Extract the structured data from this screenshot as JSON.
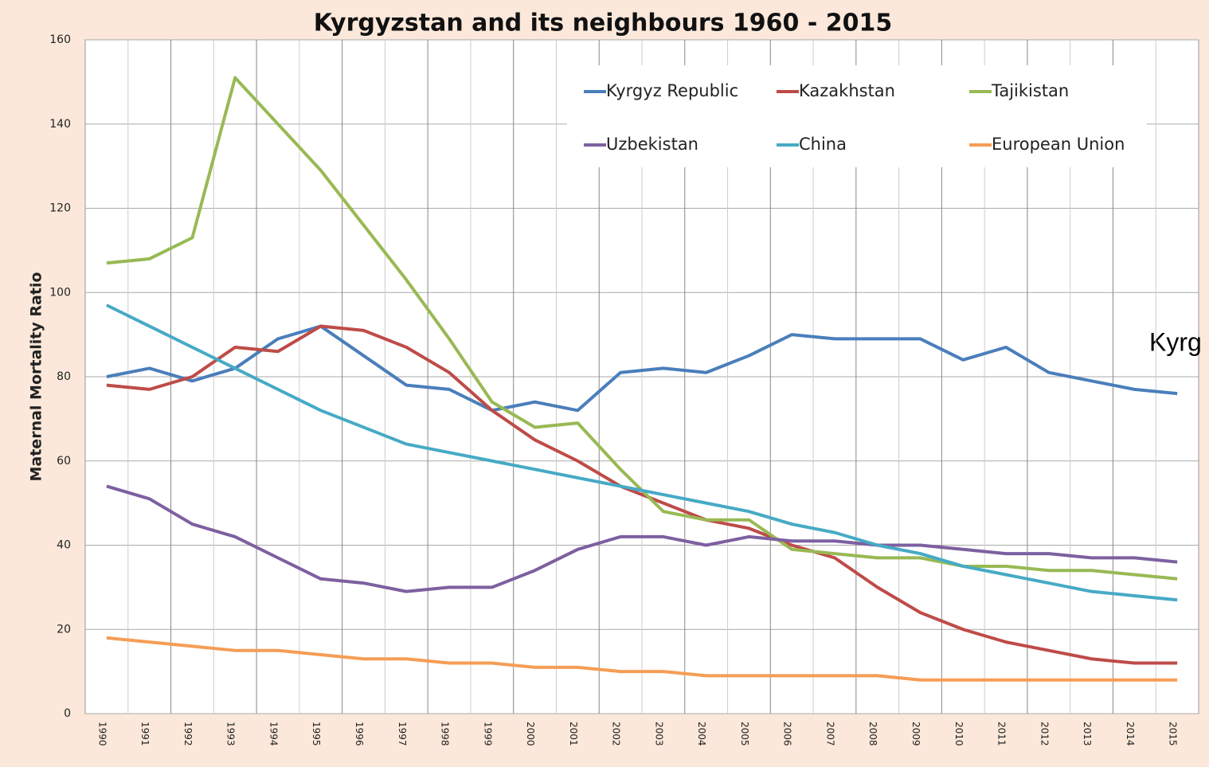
{
  "chart_data": {
    "type": "line",
    "title": "Kyrgyzstan and its neighbours 1960 - 2015",
    "y_label": "Maternal Mortality Ratio",
    "annotation": "Kyrg",
    "categories": [
      "1990",
      "1991",
      "1992",
      "1993",
      "1994",
      "1995",
      "1996",
      "1997",
      "1998",
      "1999",
      "2000",
      "2001",
      "2002",
      "2003",
      "2004",
      "2005",
      "2006",
      "2007",
      "2008",
      "2009",
      "2010",
      "2011",
      "2012",
      "2013",
      "2014",
      "2015"
    ],
    "series": [
      {
        "name": "Kyrgyz Republic",
        "color": "#4a7ebb",
        "values": [
          80,
          82,
          79,
          82,
          89,
          92,
          85,
          78,
          77,
          72,
          74,
          72,
          81,
          82,
          81,
          85,
          90,
          89,
          89,
          89,
          84,
          87,
          81,
          79,
          77,
          76
        ]
      },
      {
        "name": "Kazakhstan",
        "color": "#be4b48",
        "values": [
          78,
          77,
          80,
          87,
          86,
          92,
          91,
          87,
          81,
          72,
          65,
          60,
          54,
          50,
          46,
          44,
          40,
          37,
          30,
          24,
          20,
          17,
          15,
          13,
          12,
          12
        ]
      },
      {
        "name": "Tajikistan",
        "color": "#98b954",
        "values": [
          107,
          108,
          113,
          151,
          140,
          129,
          116,
          103,
          89,
          74,
          68,
          69,
          58,
          48,
          46,
          46,
          39,
          38,
          37,
          37,
          35,
          35,
          34,
          34,
          33,
          32
        ]
      },
      {
        "name": "Uzbekistan",
        "color": "#7d60a0",
        "values": [
          54,
          51,
          45,
          42,
          37,
          32,
          31,
          29,
          30,
          30,
          34,
          39,
          42,
          42,
          40,
          42,
          41,
          41,
          40,
          40,
          39,
          38,
          38,
          37,
          37,
          36
        ]
      },
      {
        "name": "China",
        "color": "#46aac5",
        "values": [
          97,
          92,
          87,
          82,
          77,
          72,
          68,
          64,
          62,
          60,
          58,
          56,
          54,
          52,
          50,
          48,
          45,
          43,
          40,
          38,
          35,
          33,
          31,
          29,
          28,
          27
        ]
      },
      {
        "name": "European Union",
        "color": "#f59d56",
        "values": [
          18,
          17,
          16,
          15,
          15,
          14,
          13,
          13,
          12,
          12,
          11,
          11,
          10,
          10,
          9,
          9,
          9,
          9,
          9,
          8,
          8,
          8,
          8,
          8,
          8,
          8
        ]
      }
    ],
    "ylim": [
      0,
      160
    ],
    "yticks": [
      0,
      20,
      40,
      60,
      80,
      100,
      120,
      140,
      160
    ],
    "grid": true
  }
}
